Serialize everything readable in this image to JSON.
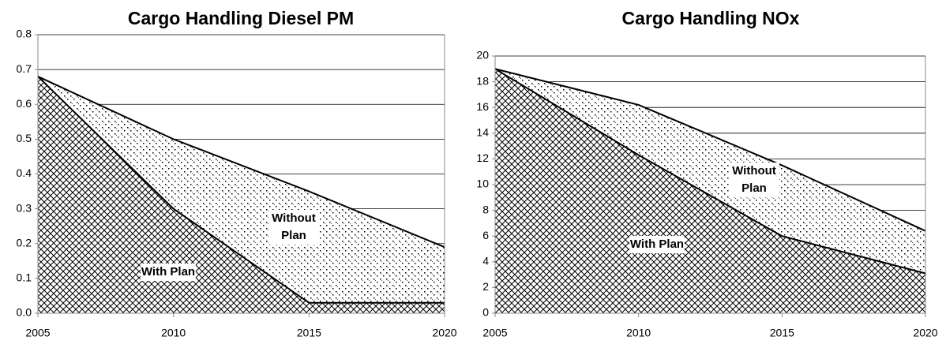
{
  "chart_data": [
    {
      "type": "area",
      "title": "Cargo Handling Diesel PM",
      "x": [
        2005,
        2010,
        2015,
        2020
      ],
      "xlim": [
        2005,
        2020
      ],
      "xticks": [
        2005,
        2010,
        2015,
        2020
      ],
      "ylim": [
        0,
        0.8
      ],
      "yticks": [
        {
          "value": 0,
          "label": "0.0"
        },
        0.1,
        0.2,
        0.3,
        0.4,
        0.5,
        0.6,
        0.7,
        0.8
      ],
      "grid": true,
      "series": [
        {
          "name": "Without Plan",
          "color": "#000000",
          "values": [
            0.68,
            0.5,
            0.35,
            0.19
          ]
        },
        {
          "name": "With Plan",
          "color": "#000000",
          "values": [
            0.68,
            0.3,
            0.03,
            0.03
          ]
        }
      ]
    },
    {
      "type": "area",
      "title": "Cargo Handling NOx",
      "x": [
        2005,
        2010,
        2015,
        2020
      ],
      "xlim": [
        2005,
        2020
      ],
      "xticks": [
        2005,
        2010,
        2015,
        2020
      ],
      "ylim": [
        0,
        20
      ],
      "yticks": [
        0,
        2,
        4,
        6,
        8,
        10,
        12,
        14,
        16,
        18,
        20
      ],
      "grid": true,
      "series": [
        {
          "name": "Without Plan",
          "color": "#000000",
          "values": [
            19,
            16.2,
            11.5,
            6.4
          ]
        },
        {
          "name": "With Plan",
          "color": "#000000",
          "values": [
            19,
            12.3,
            6,
            3.1
          ]
        }
      ]
    }
  ]
}
